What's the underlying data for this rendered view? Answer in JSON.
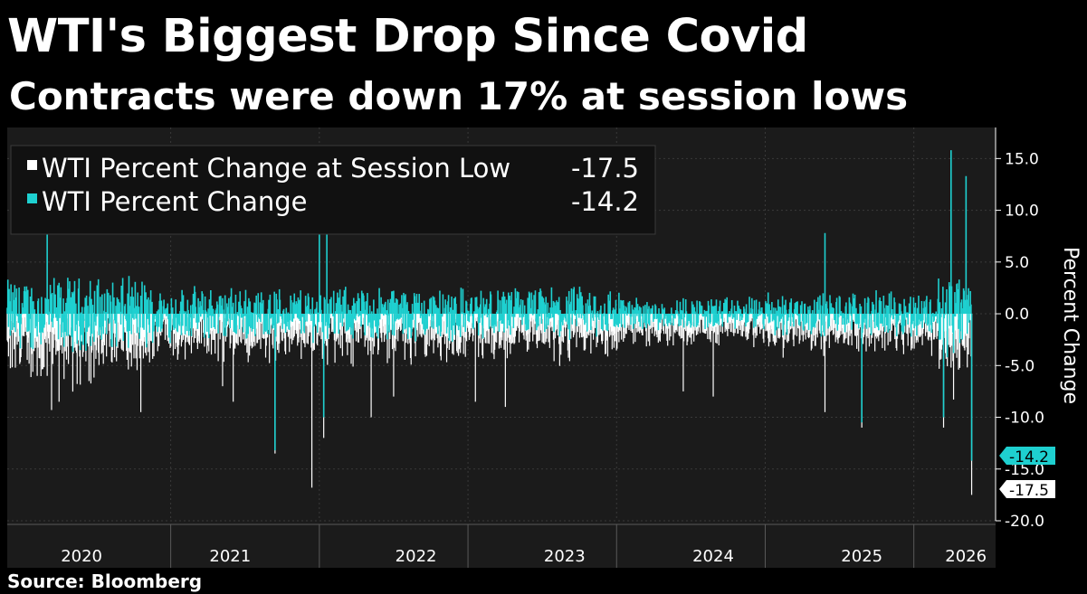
{
  "title": "WTI's Biggest Drop Since Covid",
  "subtitle": "Contracts were down 17% at session lows",
  "source": "Source: Bloomberg",
  "colors": {
    "background": "#000000",
    "plot_background": "#1b1b1b",
    "series_low": "#ffffff",
    "series_change": "#1ed0d0",
    "grid": "#3a3a3a",
    "text": "#ffffff"
  },
  "chart_data": {
    "type": "bar",
    "title": "WTI's Biggest Drop Since Covid",
    "subtitle": "Contracts were down 17% at session lows",
    "xlabel": "",
    "ylabel": "Percent Change",
    "ylim": [
      -20,
      18
    ],
    "y_ticks": [
      "15.0",
      "10.0",
      "5.0",
      "0.0",
      "-5.0",
      "-10.0",
      "-15.0",
      "-20.0"
    ],
    "y_tick_values": [
      15,
      10,
      5,
      0,
      -5,
      -10,
      -15,
      -20
    ],
    "x_range": [
      2019.75,
      2026.4
    ],
    "x_tick_labels": [
      "2020",
      "2021",
      "2022",
      "2023",
      "2024",
      "2025",
      "2026"
    ],
    "x_tick_label_positions": [
      2020.25,
      2021.25,
      2022.5,
      2023.5,
      2024.5,
      2025.5,
      2026.2
    ],
    "x_separators": [
      2020.85,
      2021.85,
      2022.85,
      2023.85,
      2024.85,
      2025.85
    ],
    "legend_position": "top-left",
    "series": [
      {
        "name": "WTI Percent Change at Session Low",
        "last_value": "-17.5",
        "color": "#ffffff",
        "final_value": -17.5,
        "spikes": [
          [
            2020.02,
            -6
          ],
          [
            2020.05,
            -9.3
          ],
          [
            2020.1,
            -8.5
          ],
          [
            2020.3,
            -6.5
          ],
          [
            2020.65,
            -9.5
          ],
          [
            2021.2,
            -7
          ],
          [
            2021.27,
            -8.5
          ],
          [
            2021.55,
            -13.5
          ],
          [
            2021.8,
            -16.8
          ],
          [
            2021.88,
            -12
          ],
          [
            2022.2,
            -10
          ],
          [
            2022.35,
            -8
          ],
          [
            2022.9,
            -8.5
          ],
          [
            2023.1,
            -9
          ],
          [
            2024.3,
            -7.5
          ],
          [
            2024.5,
            -8
          ],
          [
            2025.25,
            -9.5
          ],
          [
            2025.5,
            -11
          ],
          [
            2026.05,
            -11
          ],
          [
            2026.25,
            -17.5
          ]
        ],
        "peaks": [
          [
            2020.02,
            10.5
          ],
          [
            2021.85,
            10
          ],
          [
            2026.1,
            15.5
          ],
          [
            2026.2,
            13
          ]
        ]
      },
      {
        "name": "WTI Percent Change",
        "last_value": "-14.2",
        "color": "#1ed0d0",
        "final_value": -14.2,
        "spikes": [
          [
            2021.55,
            -13.2
          ],
          [
            2021.88,
            -10
          ],
          [
            2025.5,
            -10.5
          ],
          [
            2026.05,
            -10
          ],
          [
            2026.25,
            -14.2
          ]
        ],
        "peaks": [
          [
            2020.02,
            10.5
          ],
          [
            2021.85,
            10.5
          ],
          [
            2021.9,
            8.5
          ],
          [
            2025.25,
            7.8
          ],
          [
            2026.1,
            15.8
          ],
          [
            2026.2,
            13.3
          ]
        ]
      }
    ]
  }
}
